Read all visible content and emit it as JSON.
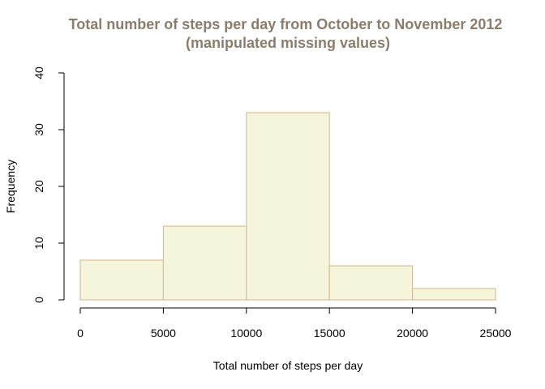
{
  "chart_data": {
    "type": "bar",
    "title": "Total number of steps per day from October to November 2012",
    "subtitle": "(manipulated missing values)",
    "xlabel": "Total number of steps per day",
    "ylabel": "Frequency",
    "bins": [
      {
        "start": 0,
        "end": 5000,
        "count": 7
      },
      {
        "start": 5000,
        "end": 10000,
        "count": 13
      },
      {
        "start": 10000,
        "end": 15000,
        "count": 33
      },
      {
        "start": 15000,
        "end": 20000,
        "count": 6
      },
      {
        "start": 20000,
        "end": 25000,
        "count": 2
      }
    ],
    "xlim": [
      0,
      25000
    ],
    "ylim": [
      0,
      40
    ],
    "x_ticks": [
      "0",
      "5000",
      "10000",
      "15000",
      "20000",
      "25000"
    ],
    "y_ticks": [
      "0",
      "10",
      "20",
      "30",
      "40"
    ],
    "grid": false,
    "bar_fill": "#f5f5dc",
    "bar_stroke": "#d2b48c",
    "title_color": "#8b7d6b"
  }
}
